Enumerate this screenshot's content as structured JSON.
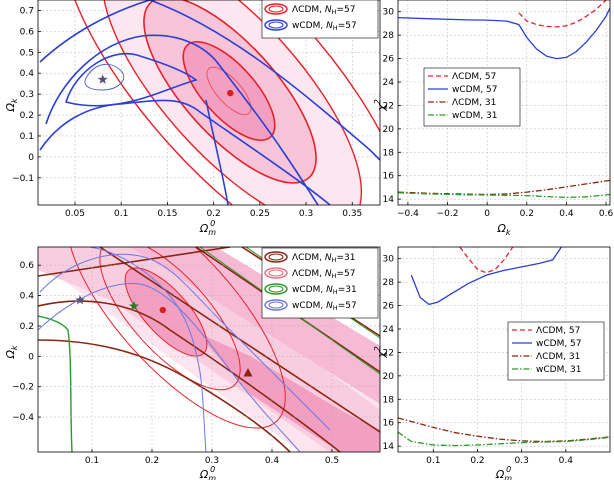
{
  "chart_data": [
    {
      "id": "top-left",
      "type": "contour",
      "xlabel": "Ω_m^0",
      "ylabel": "Ω_k",
      "xlim": [
        0.01,
        0.38
      ],
      "ylim": [
        -0.23,
        0.75
      ],
      "xticks": [
        0.05,
        0.1,
        0.15,
        0.2,
        0.25,
        0.3,
        0.35
      ],
      "yticks": [
        -0.1,
        0,
        0.1,
        0.2,
        0.3,
        0.4,
        0.5,
        0.6,
        0.7
      ],
      "xtick_labels": [
        "0.05",
        "0.1",
        "0.15",
        "0.2",
        "0.25",
        "0.3",
        "0.35"
      ],
      "ytick_labels": [
        "−0.1",
        "0",
        "0.1",
        "0.2",
        "0.3",
        "0.4",
        "0.5",
        "0.6",
        "0.7"
      ],
      "legend": [
        {
          "label": "ΛCDM,",
          "nh": "N",
          "nsub": "H",
          "nval": "=57",
          "color": "#e8202a"
        },
        {
          "label": "wCDM,",
          "nh": "N",
          "nsub": "H",
          "nval": "=57",
          "color": "#2b3fd6"
        }
      ],
      "best_fit": [
        {
          "model": "ΛCDM",
          "x": 0.218,
          "y": 0.305,
          "marker": "circle",
          "color": "#d42020"
        },
        {
          "model": "wCDM",
          "x": 0.08,
          "y": 0.37,
          "marker": "star",
          "color": "#555577"
        }
      ]
    },
    {
      "id": "top-right",
      "type": "line",
      "xlabel": "Ω_k",
      "ylabel": "χ²",
      "xlim": [
        -0.45,
        0.62
      ],
      "ylim": [
        13.5,
        31
      ],
      "xticks": [
        -0.4,
        -0.2,
        0,
        0.2,
        0.4,
        0.6
      ],
      "yticks": [
        14,
        16,
        18,
        20,
        22,
        24,
        26,
        28,
        30
      ],
      "xtick_labels": [
        "−0.4",
        "−0.2",
        "0",
        "0.2",
        "0.4",
        "0.6"
      ],
      "ytick_labels": [
        "14",
        "16",
        "18",
        "20",
        "22",
        "24",
        "26",
        "28",
        "30"
      ],
      "series": [
        {
          "name": "ΛCDM, 57",
          "color": "#e8202a",
          "dash": "5,3",
          "x": [
            0.16,
            0.2,
            0.25,
            0.3,
            0.35,
            0.4,
            0.45,
            0.5,
            0.55,
            0.6
          ],
          "y": [
            29.9,
            29.2,
            28.9,
            28.75,
            28.7,
            28.8,
            29.1,
            29.6,
            30.2,
            31.0
          ]
        },
        {
          "name": "wCDM, 57",
          "color": "#2b3fd6",
          "dash": "",
          "x": [
            -0.45,
            -0.3,
            -0.1,
            0.0,
            0.1,
            0.16,
            0.2,
            0.25,
            0.3,
            0.35,
            0.4,
            0.45,
            0.5,
            0.55,
            0.6,
            0.62
          ],
          "y": [
            29.5,
            29.4,
            29.3,
            29.28,
            29.2,
            28.9,
            27.8,
            26.8,
            26.2,
            26.0,
            26.1,
            26.6,
            27.4,
            28.4,
            29.6,
            30.3
          ]
        },
        {
          "name": "ΛCDM, 31",
          "color": "#8b2512",
          "dash": "6,2,1.5,2",
          "x": [
            -0.45,
            -0.3,
            -0.1,
            0.0,
            0.1,
            0.2,
            0.3,
            0.4,
            0.5,
            0.62
          ],
          "y": [
            14.6,
            14.5,
            14.42,
            14.4,
            14.45,
            14.6,
            14.8,
            15.05,
            15.3,
            15.6
          ]
        },
        {
          "name": "wCDM, 31",
          "color": "#2a9a2a",
          "dash": "6,2,1.5,2",
          "x": [
            -0.45,
            -0.3,
            -0.1,
            0.0,
            0.1,
            0.2,
            0.3,
            0.4,
            0.5,
            0.62
          ],
          "y": [
            14.55,
            14.45,
            14.37,
            14.35,
            14.33,
            14.3,
            14.22,
            14.15,
            14.2,
            14.4
          ]
        }
      ]
    },
    {
      "id": "bottom-left",
      "type": "contour",
      "xlabel": "Ω_m^0",
      "ylabel": "Ω_k",
      "xlim": [
        0.01,
        0.58
      ],
      "ylim": [
        -0.63,
        0.72
      ],
      "xticks": [
        0.1,
        0.2,
        0.3,
        0.4,
        0.5
      ],
      "yticks": [
        -0.4,
        -0.2,
        0,
        0.2,
        0.4,
        0.6
      ],
      "xtick_labels": [
        "0.1",
        "0.2",
        "0.3",
        "0.4",
        "0.5"
      ],
      "ytick_labels": [
        "−0.4",
        "−0.2",
        "0",
        "0.2",
        "0.4",
        "0.6"
      ],
      "legend": [
        {
          "label": "ΛCDM,",
          "nh": "N",
          "nsub": "H",
          "nval": "=31",
          "color": "#8b2512"
        },
        {
          "label": "ΛCDM,",
          "nh": "N",
          "nsub": "H",
          "nval": "=57",
          "color": "#f07080"
        },
        {
          "label": "wCDM,",
          "nh": "N",
          "nsub": "H",
          "nval": "=31",
          "color": "#2a9a2a"
        },
        {
          "label": "wCDM,",
          "nh": "N",
          "nsub": "H",
          "nval": "=57",
          "color": "#6a7ae0"
        }
      ],
      "best_fit": [
        {
          "model": "ΛCDM 57",
          "x": 0.218,
          "y": 0.305,
          "marker": "circle",
          "color": "#d42020"
        },
        {
          "model": "wCDM 57",
          "x": 0.08,
          "y": 0.37,
          "marker": "star",
          "color": "#555577"
        },
        {
          "model": "wCDM 31",
          "x": 0.17,
          "y": 0.33,
          "marker": "star",
          "color": "#2a7a2a"
        },
        {
          "model": "ΛCDM 31",
          "x": 0.36,
          "y": -0.11,
          "marker": "triangle",
          "color": "#8b2512"
        }
      ]
    },
    {
      "id": "bottom-right",
      "type": "line",
      "xlabel": "Ω_m^0",
      "ylabel": "χ²",
      "xlim": [
        0.02,
        0.5
      ],
      "ylim": [
        13.5,
        31
      ],
      "xticks": [
        0.1,
        0.2,
        0.3,
        0.4
      ],
      "yticks": [
        14,
        16,
        18,
        20,
        22,
        24,
        26,
        28,
        30
      ],
      "xtick_labels": [
        "0.1",
        "0.2",
        "0.3",
        "0.4"
      ],
      "ytick_labels": [
        "14",
        "16",
        "18",
        "20",
        "22",
        "24",
        "26",
        "28",
        "30"
      ],
      "series": [
        {
          "name": "ΛCDM, 57",
          "color": "#e8202a",
          "dash": "5,3",
          "x": [
            0.16,
            0.18,
            0.2,
            0.22,
            0.24,
            0.26,
            0.28
          ],
          "y": [
            31.0,
            30.0,
            29.1,
            28.8,
            29.1,
            29.9,
            31.0
          ]
        },
        {
          "name": "wCDM, 57",
          "color": "#2b3fd6",
          "dash": "",
          "x": [
            0.05,
            0.07,
            0.09,
            0.11,
            0.14,
            0.18,
            0.22,
            0.26,
            0.3,
            0.34,
            0.37,
            0.39
          ],
          "y": [
            28.6,
            26.7,
            26.1,
            26.3,
            27.0,
            27.9,
            28.6,
            29.0,
            29.3,
            29.6,
            29.9,
            31.0
          ]
        },
        {
          "name": "ΛCDM, 31",
          "color": "#8b2512",
          "dash": "6,2,1.5,2",
          "x": [
            0.02,
            0.05,
            0.1,
            0.15,
            0.2,
            0.25,
            0.3,
            0.35,
            0.4,
            0.45,
            0.5
          ],
          "y": [
            16.4,
            16.1,
            15.6,
            15.15,
            14.85,
            14.6,
            14.45,
            14.4,
            14.45,
            14.6,
            14.8
          ]
        },
        {
          "name": "wCDM, 31",
          "color": "#2a9a2a",
          "dash": "6,2,1.5,2",
          "x": [
            0.02,
            0.05,
            0.1,
            0.15,
            0.2,
            0.25,
            0.3,
            0.35,
            0.4,
            0.45,
            0.5
          ],
          "y": [
            15.2,
            14.4,
            14.1,
            14.05,
            14.1,
            14.2,
            14.3,
            14.35,
            14.4,
            14.55,
            14.75
          ]
        }
      ]
    }
  ]
}
